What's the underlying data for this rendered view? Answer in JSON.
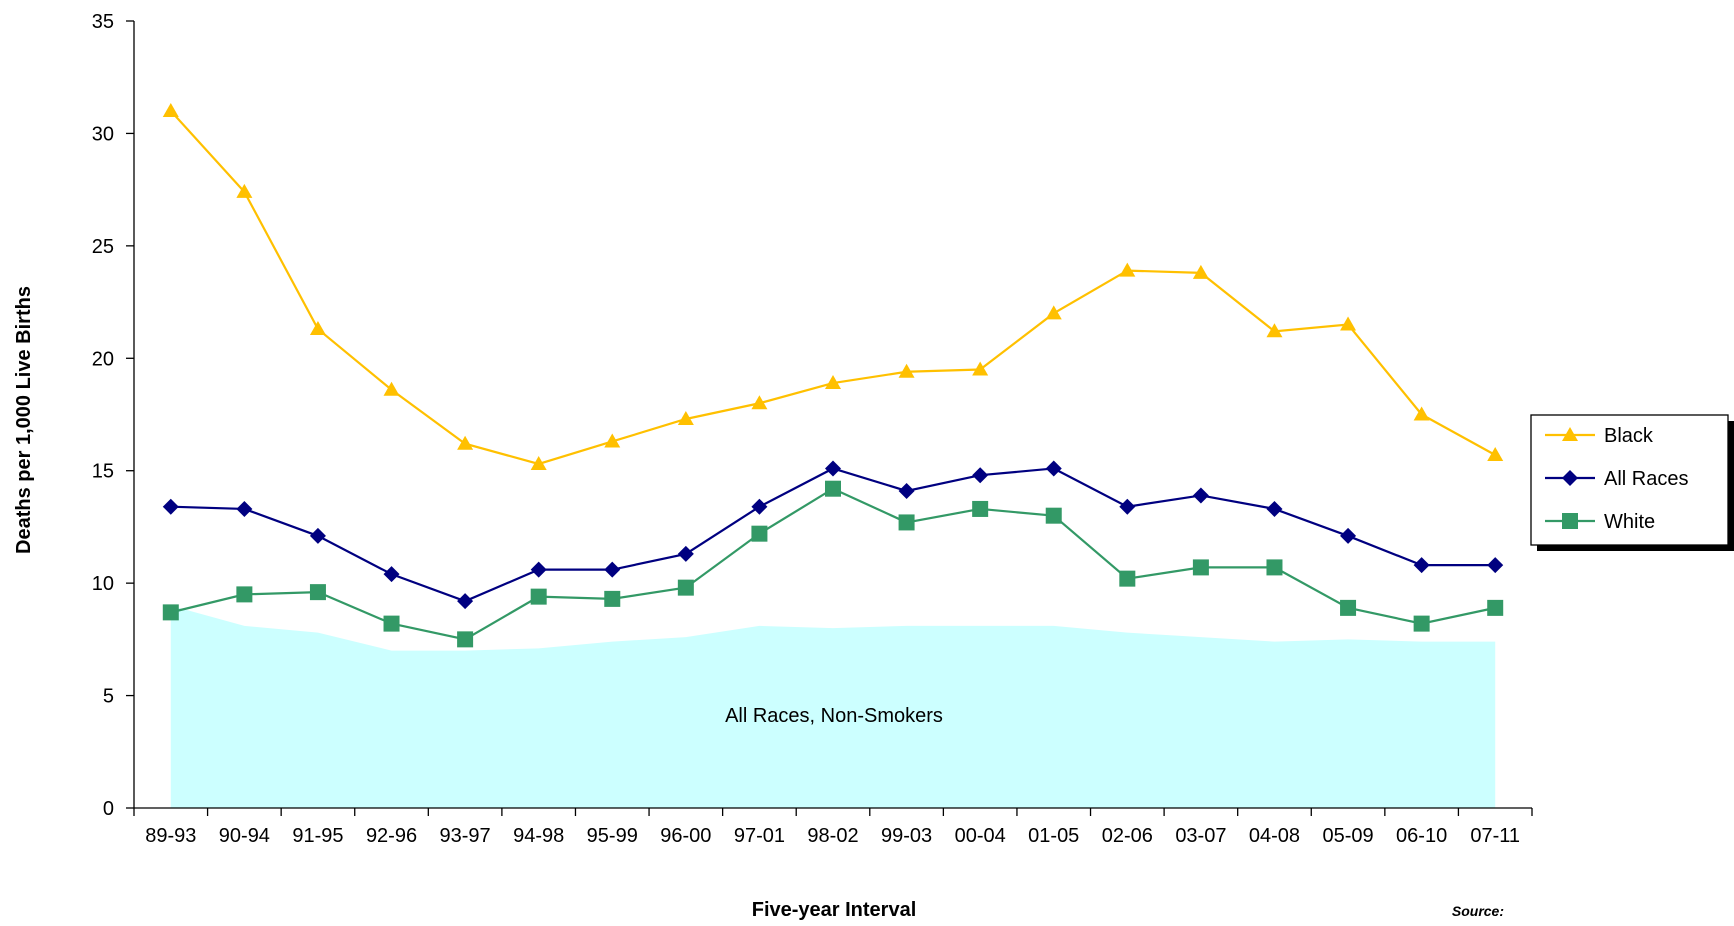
{
  "chart_data": {
    "type": "line",
    "title": "",
    "xlabel": "Five-year Interval",
    "ylabel": "Deaths per 1,000 Live Births",
    "source_label": "Source:",
    "categories": [
      "89-93",
      "90-94",
      "91-95",
      "92-96",
      "93-97",
      "94-98",
      "95-99",
      "96-00",
      "97-01",
      "98-02",
      "99-03",
      "00-04",
      "01-05",
      "02-06",
      "03-07",
      "04-08",
      "05-09",
      "06-10",
      "07-11"
    ],
    "ylim": [
      0,
      35
    ],
    "yticks": [
      0,
      5,
      10,
      15,
      20,
      25,
      30,
      35
    ],
    "grid": false,
    "legend_position": "right",
    "area": {
      "label": "All Races, Non-Smokers",
      "color": "#ccffff",
      "values": [
        9.0,
        8.1,
        7.8,
        7.0,
        7.0,
        7.1,
        7.4,
        7.6,
        8.1,
        8.0,
        8.1,
        8.1,
        8.1,
        7.8,
        7.6,
        7.4,
        7.5,
        7.4,
        7.4
      ]
    },
    "series": [
      {
        "name": "Black",
        "color": "#ffc000",
        "marker": "triangle",
        "values": [
          31.0,
          27.4,
          21.3,
          18.6,
          16.2,
          15.3,
          16.3,
          17.3,
          18.0,
          18.9,
          19.4,
          19.5,
          22.0,
          23.9,
          23.8,
          21.2,
          21.5,
          17.5,
          15.7
        ]
      },
      {
        "name": "All Races",
        "color": "#000080",
        "marker": "diamond",
        "values": [
          13.4,
          13.3,
          12.1,
          10.4,
          9.2,
          10.6,
          10.6,
          11.3,
          13.4,
          15.1,
          14.1,
          14.8,
          15.1,
          13.4,
          13.9,
          13.3,
          12.1,
          10.8,
          10.8
        ]
      },
      {
        "name": "White",
        "color": "#339966",
        "marker": "square",
        "values": [
          8.7,
          9.5,
          9.6,
          8.2,
          7.5,
          9.4,
          9.3,
          9.8,
          12.2,
          14.2,
          12.7,
          13.3,
          13.0,
          10.2,
          10.7,
          10.7,
          8.9,
          8.2,
          8.9
        ]
      }
    ]
  }
}
